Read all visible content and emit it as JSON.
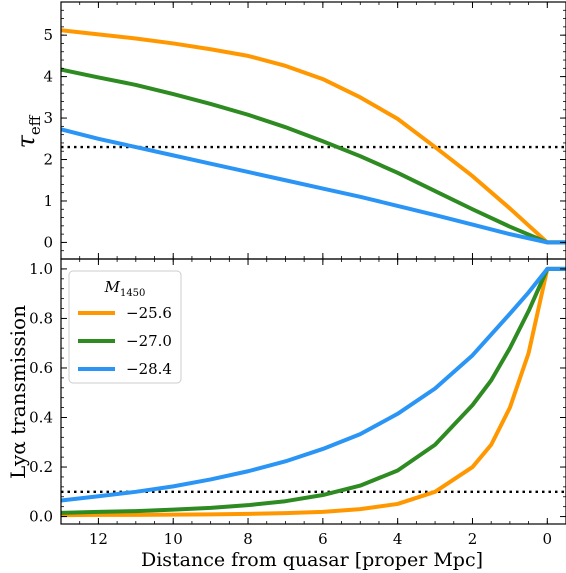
{
  "chart_data": [
    {
      "type": "line",
      "ylabel": "τ",
      "ylabel_sub": "eff",
      "xlim": [
        13.0,
        -0.5
      ],
      "ylim": [
        -0.4,
        5.8
      ],
      "yticks": [
        0,
        1,
        2,
        3,
        4,
        5
      ],
      "x_reversed": true,
      "reference_line": {
        "y": 2.3,
        "style": "dotted",
        "color": "#000000"
      },
      "series": [
        {
          "name": "−25.6",
          "color": "#ff9800",
          "x": [
            13,
            12,
            11,
            10,
            9,
            8,
            7,
            6,
            5,
            4,
            3,
            2,
            1,
            0,
            -0.5
          ],
          "y": [
            5.12,
            5.02,
            4.92,
            4.8,
            4.66,
            4.5,
            4.26,
            3.94,
            3.5,
            2.98,
            2.3,
            1.6,
            0.82,
            0.0,
            0.0
          ]
        },
        {
          "name": "−27.0",
          "color": "#2e8b22",
          "x": [
            13,
            12,
            11,
            10,
            9,
            8,
            7,
            6,
            5,
            4,
            3,
            2,
            1,
            0,
            -0.5
          ],
          "y": [
            4.17,
            3.98,
            3.8,
            3.58,
            3.34,
            3.08,
            2.78,
            2.44,
            2.08,
            1.68,
            1.24,
            0.8,
            0.38,
            0.0,
            0.0
          ]
        },
        {
          "name": "−28.4",
          "color": "#2b95f5",
          "x": [
            13,
            12,
            11,
            10,
            9,
            8,
            7,
            6,
            5,
            4,
            3,
            2,
            1,
            0,
            -0.5
          ],
          "y": [
            2.73,
            2.5,
            2.3,
            2.1,
            1.9,
            1.7,
            1.5,
            1.3,
            1.1,
            0.88,
            0.66,
            0.43,
            0.2,
            0.0,
            0.0
          ]
        }
      ]
    },
    {
      "type": "line",
      "ylabel": "Lyα transmission",
      "xlabel": "Distance from quasar [proper Mpc]",
      "xlim": [
        13.0,
        -0.5
      ],
      "ylim": [
        -0.03,
        1.04
      ],
      "xticks": [
        12,
        10,
        8,
        6,
        4,
        2,
        0
      ],
      "yticks": [
        0.0,
        0.2,
        0.4,
        0.6,
        0.8,
        1.0
      ],
      "x_reversed": true,
      "reference_line": {
        "y": 0.1,
        "style": "dotted",
        "color": "#000000"
      },
      "legend": {
        "title": "M",
        "title_sub": "1450",
        "placement": "upper-left"
      },
      "series": [
        {
          "name": "−25.6",
          "color": "#ff9800",
          "x": [
            13,
            12,
            11,
            10,
            9,
            8,
            7,
            6,
            5,
            4,
            3,
            2.5,
            2,
            1.5,
            1,
            0.5,
            0,
            -0.5
          ],
          "y": [
            0.006,
            0.007,
            0.007,
            0.008,
            0.009,
            0.011,
            0.014,
            0.019,
            0.03,
            0.051,
            0.1,
            0.15,
            0.2,
            0.29,
            0.44,
            0.66,
            1.0,
            1.0
          ]
        },
        {
          "name": "−27.0",
          "color": "#2e8b22",
          "x": [
            13,
            12,
            11,
            10,
            9,
            8,
            7,
            6,
            5,
            4,
            3,
            2,
            1.5,
            1,
            0.5,
            0,
            -0.5
          ],
          "y": [
            0.015,
            0.019,
            0.022,
            0.028,
            0.035,
            0.046,
            0.062,
            0.087,
            0.125,
            0.186,
            0.29,
            0.45,
            0.55,
            0.68,
            0.83,
            1.0,
            1.0
          ]
        },
        {
          "name": "−28.4",
          "color": "#2b95f5",
          "x": [
            13,
            12,
            11,
            10,
            9,
            8,
            7,
            6,
            5,
            4,
            3,
            2,
            1,
            0.5,
            0,
            -0.5
          ],
          "y": [
            0.065,
            0.082,
            0.1,
            0.122,
            0.15,
            0.183,
            0.223,
            0.273,
            0.333,
            0.415,
            0.517,
            0.651,
            0.819,
            0.905,
            1.0,
            1.0
          ]
        }
      ]
    }
  ]
}
